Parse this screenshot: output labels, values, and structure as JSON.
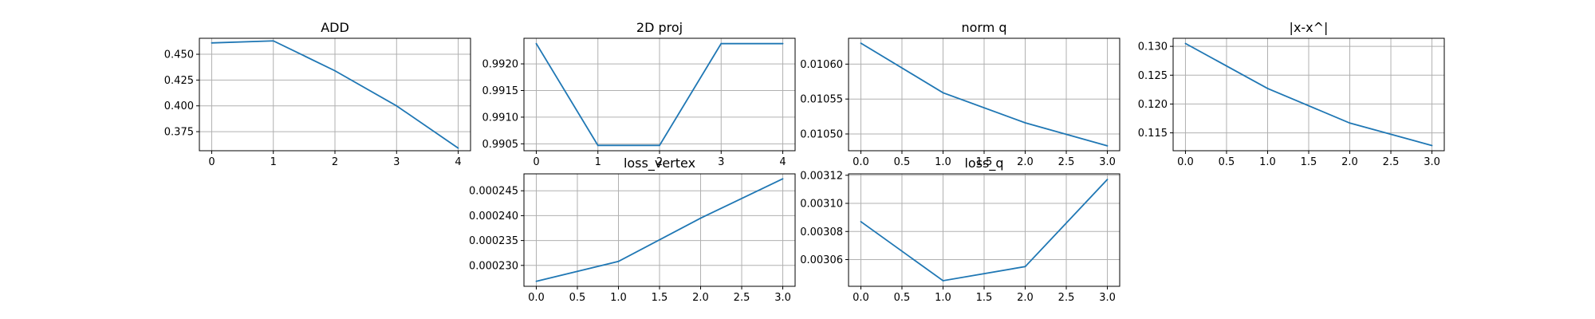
{
  "chart_data": [
    {
      "type": "line",
      "title": "ADD",
      "xlabel": "",
      "ylabel": "",
      "x": [
        0,
        1,
        2,
        3,
        4
      ],
      "series": [
        {
          "values": [
            0.461,
            0.463,
            0.434,
            0.4,
            0.359
          ]
        }
      ],
      "xlim": [
        -0.2,
        4.2
      ],
      "ylim": [
        0.3565,
        0.4655
      ],
      "xticks": [
        0,
        1,
        2,
        3,
        4
      ],
      "xtick_labels": [
        "0",
        "1",
        "2",
        "3",
        "4"
      ],
      "yticks": [
        0.375,
        0.4,
        0.425,
        0.45
      ],
      "ytick_labels": [
        "0.375",
        "0.400",
        "0.425",
        "0.450"
      ],
      "grid": true,
      "color": "#1f77b4"
    },
    {
      "type": "line",
      "title": "2D proj",
      "xlabel": "",
      "ylabel": "",
      "x": [
        0,
        1,
        2,
        3,
        4
      ],
      "series": [
        {
          "values": [
            0.99238,
            0.99047,
            0.99047,
            0.99238,
            0.99238
          ]
        }
      ],
      "xlim": [
        -0.2,
        4.2
      ],
      "ylim": [
        0.99037,
        0.99248
      ],
      "xticks": [
        0,
        1,
        2,
        3,
        4
      ],
      "xtick_labels": [
        "0",
        "1",
        "2",
        "3",
        "4"
      ],
      "yticks": [
        0.9905,
        0.991,
        0.9915,
        0.992
      ],
      "ytick_labels": [
        "0.9905",
        "0.9910",
        "0.9915",
        "0.9920"
      ],
      "grid": true,
      "color": "#1f77b4"
    },
    {
      "type": "line",
      "title": "norm q",
      "xlabel": "",
      "ylabel": "",
      "x": [
        0,
        1,
        2,
        3
      ],
      "series": [
        {
          "values": [
            0.01063,
            0.010559,
            0.010516,
            0.010483
          ]
        }
      ],
      "xlim": [
        -0.15,
        3.15
      ],
      "ylim": [
        0.010476,
        0.010637
      ],
      "xticks": [
        0,
        0.5,
        1,
        1.5,
        2,
        2.5,
        3
      ],
      "xtick_labels": [
        "0.0",
        "0.5",
        "1.0",
        "1.5",
        "2.0",
        "2.5",
        "3.0"
      ],
      "yticks": [
        0.0105,
        0.01055,
        0.0106
      ],
      "ytick_labels": [
        "0.01050",
        "0.01055",
        "0.01060"
      ],
      "grid": true,
      "color": "#1f77b4"
    },
    {
      "type": "line",
      "title": "|x-x^|",
      "xlabel": "",
      "ylabel": "",
      "x": [
        0,
        1,
        2,
        3
      ],
      "series": [
        {
          "values": [
            0.1305,
            0.1227,
            0.1167,
            0.1128
          ]
        }
      ],
      "xlim": [
        -0.15,
        3.15
      ],
      "ylim": [
        0.1119,
        0.1314
      ],
      "xticks": [
        0,
        0.5,
        1,
        1.5,
        2,
        2.5,
        3
      ],
      "xtick_labels": [
        "0.0",
        "0.5",
        "1.0",
        "1.5",
        "2.0",
        "2.5",
        "3.0"
      ],
      "yticks": [
        0.115,
        0.12,
        0.125,
        0.13
      ],
      "ytick_labels": [
        "0.115",
        "0.120",
        "0.125",
        "0.130"
      ],
      "grid": true,
      "color": "#1f77b4"
    },
    {
      "type": "line",
      "title": "loss_vertex",
      "xlabel": "",
      "ylabel": "",
      "x": [
        0,
        1,
        2,
        3
      ],
      "series": [
        {
          "values": [
            0.0002268,
            0.0002308,
            0.0002395,
            0.0002474
          ]
        }
      ],
      "xlim": [
        -0.15,
        3.15
      ],
      "ylim": [
        0.0002258,
        0.0002484
      ],
      "xticks": [
        0,
        0.5,
        1,
        1.5,
        2,
        2.5,
        3
      ],
      "xtick_labels": [
        "0.0",
        "0.5",
        "1.0",
        "1.5",
        "2.0",
        "2.5",
        "3.0"
      ],
      "yticks": [
        0.00023,
        0.000235,
        0.00024,
        0.000245
      ],
      "ytick_labels": [
        "0.000230",
        "0.000235",
        "0.000240",
        "0.000245"
      ],
      "grid": true,
      "color": "#1f77b4"
    },
    {
      "type": "line",
      "title": "loss_q",
      "xlabel": "",
      "ylabel": "",
      "x": [
        0,
        1,
        2,
        3
      ],
      "series": [
        {
          "values": [
            0.003087,
            0.003045,
            0.003055,
            0.003117
          ]
        }
      ],
      "xlim": [
        -0.15,
        3.15
      ],
      "ylim": [
        0.003041,
        0.003121
      ],
      "xticks": [
        0,
        0.5,
        1,
        1.5,
        2,
        2.5,
        3
      ],
      "xtick_labels": [
        "0.0",
        "0.5",
        "1.0",
        "1.5",
        "2.0",
        "2.5",
        "3.0"
      ],
      "yticks": [
        0.00306,
        0.00308,
        0.0031,
        0.00312
      ],
      "ytick_labels": [
        "0.00306",
        "0.00308",
        "0.00310",
        "0.00312"
      ],
      "grid": true,
      "color": "#1f77b4"
    }
  ]
}
